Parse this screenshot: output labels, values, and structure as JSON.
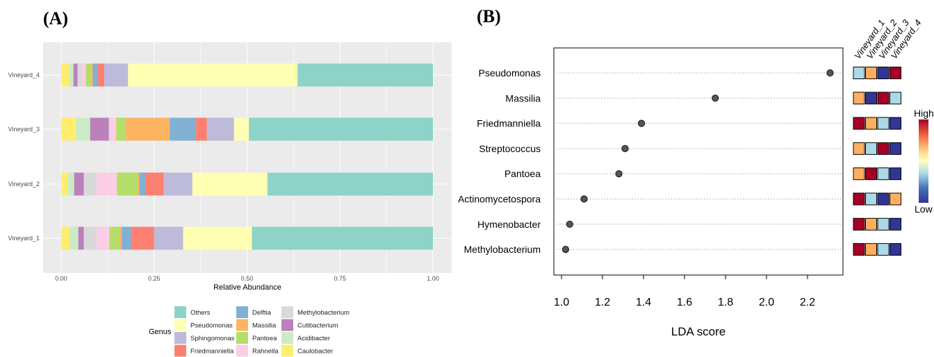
{
  "panel_a": {
    "label": "(A)",
    "xlabel": "Relative Abundance",
    "legend_title": "Genus",
    "x_ticks": [
      "0.00",
      "0.25",
      "0.50",
      "0.75",
      "1.00"
    ],
    "colors": {
      "Caulobacter": "#FFED6F",
      "Acidibacter": "#CCEBC5",
      "Cutibacterium": "#BC80BD",
      "Methylobacterium": "#D9D9D9",
      "Rahnella": "#FCCDE5",
      "Pantoea": "#B3DE69",
      "Massilia": "#FDB462",
      "Delftia": "#80B1D3",
      "Friedmanniella": "#FB8072",
      "Sphingomonas": "#BEBADA",
      "Pseudomonas": "#FFFFB3",
      "Others": "#8DD3C7"
    },
    "legend_items": [
      "Others",
      "Pseudomonas",
      "Sphingomonas",
      "Friedmanniella",
      "Delftia",
      "Massilia",
      "Pantoea",
      "Rahnella",
      "Methylobacterium",
      "Cutibacterium",
      "Acidibacter",
      "Caulobacter"
    ]
  },
  "panel_b": {
    "label": "(B)",
    "xlabel": "LDA score",
    "x_ticks": [
      "1.0",
      "1.2",
      "1.4",
      "1.6",
      "1.8",
      "2.0",
      "2.2"
    ],
    "heat_columns": [
      "Vineyard_1",
      "Vineyard_2",
      "Vineyard_3",
      "Vineyard_4"
    ],
    "heat_colors": {
      "1": "#A50026",
      "2": "#FDAE61",
      "3": "#ABD9E9",
      "4": "#313695"
    },
    "colorbar": {
      "high": "High",
      "low": "Low"
    }
  },
  "chart_data": [
    {
      "type": "bar",
      "orientation": "horizontal",
      "stacked": true,
      "xlabel": "Relative Abundance",
      "xlim": [
        0,
        1
      ],
      "legend_title": "Genus",
      "categories": [
        "Vineyard_1",
        "Vineyard_2",
        "Vineyard_3",
        "Vineyard_4"
      ],
      "series": [
        {
          "name": "Caulobacter",
          "values": [
            0.023,
            0.017,
            0.04,
            0.022
          ]
        },
        {
          "name": "Acidibacter",
          "values": [
            0.023,
            0.018,
            0.038,
            0.011
          ]
        },
        {
          "name": "Cutibacterium",
          "values": [
            0.015,
            0.026,
            0.05,
            0.011
          ]
        },
        {
          "name": "Methylobacterium",
          "values": [
            0.035,
            0.034,
            0.004,
            0.011
          ]
        },
        {
          "name": "Rahnella",
          "values": [
            0.034,
            0.055,
            0.016,
            0.012
          ]
        },
        {
          "name": "Pantoea",
          "values": [
            0.027,
            0.055,
            0.026,
            0.013
          ]
        },
        {
          "name": "Massilia",
          "values": [
            0.006,
            0.005,
            0.118,
            0.005
          ]
        },
        {
          "name": "Delftia",
          "values": [
            0.025,
            0.017,
            0.07,
            0.013
          ]
        },
        {
          "name": "Friedmanniella",
          "values": [
            0.062,
            0.049,
            0.03,
            0.018
          ]
        },
        {
          "name": "Sphingomonas",
          "values": [
            0.078,
            0.077,
            0.073,
            0.064
          ]
        },
        {
          "name": "Pseudomonas",
          "values": [
            0.185,
            0.202,
            0.04,
            0.456
          ]
        },
        {
          "name": "Others",
          "values": [
            0.487,
            0.445,
            0.495,
            0.364
          ]
        }
      ]
    },
    {
      "type": "scatter",
      "xlabel": "LDA score",
      "xlim": [
        0.98,
        2.28
      ],
      "categories": [
        "Pseudomonas",
        "Massilia",
        "Friedmanniella",
        "Streptococcus",
        "Pantoea",
        "Actinomycetospora",
        "Hymenobacter",
        "Methylobacterium"
      ],
      "values": [
        2.31,
        1.75,
        1.39,
        1.31,
        1.28,
        1.11,
        1.04,
        1.02
      ]
    },
    {
      "type": "heatmap",
      "rows": [
        "Pseudomonas",
        "Massilia",
        "Friedmanniella",
        "Streptococcus",
        "Pantoea",
        "Actinomycetospora",
        "Hymenobacter",
        "Methylobacterium"
      ],
      "columns": [
        "Vineyard_1",
        "Vineyard_2",
        "Vineyard_3",
        "Vineyard_4"
      ],
      "rank_values": [
        [
          3,
          2,
          4,
          1
        ],
        [
          2,
          4,
          1,
          3
        ],
        [
          1,
          2,
          3,
          4
        ],
        [
          2,
          3,
          1,
          4
        ],
        [
          2,
          1,
          3,
          4
        ],
        [
          1,
          3,
          4,
          2
        ],
        [
          1,
          2,
          3,
          4
        ],
        [
          1,
          2,
          3,
          4
        ]
      ],
      "scale": [
        "Low",
        "High"
      ]
    }
  ]
}
